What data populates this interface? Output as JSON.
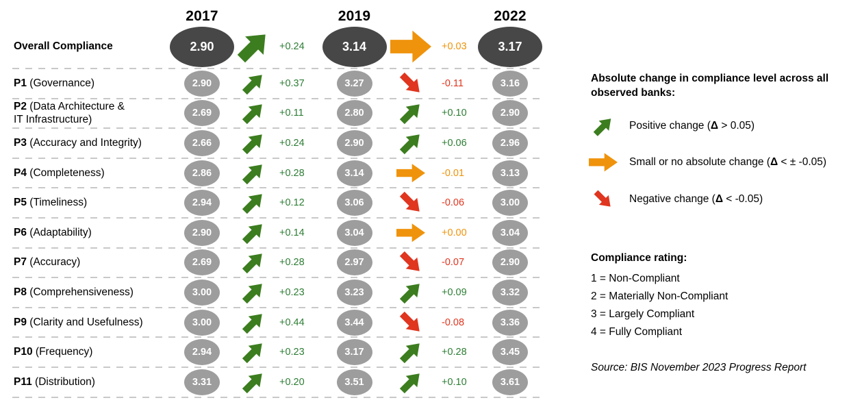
{
  "chart_data": {
    "type": "table",
    "title": "Compliance level by principle, 2017 vs 2019 vs 2022",
    "years": [
      "2017",
      "2019",
      "2022"
    ],
    "overall": {
      "label": "Overall Compliance",
      "v2017": "2.90",
      "d1": "+0.24",
      "t1": "up",
      "v2019": "3.14",
      "d2": "+0.03",
      "t2": "flat",
      "v2022": "3.17"
    },
    "rows": [
      {
        "prefix": "P1",
        "name": "(Governance)",
        "name2": "",
        "v1": "2.90",
        "d1": "+0.37",
        "t1": "up",
        "v2": "3.27",
        "d2": "-0.11",
        "t2": "down",
        "v3": "3.16"
      },
      {
        "prefix": "P2",
        "name": "(Data Architecture &",
        "name2": "IT Infrastructure)",
        "v1": "2.69",
        "d1": "+0.11",
        "t1": "up",
        "v2": "2.80",
        "d2": "+0.10",
        "t2": "up",
        "v3": "2.90"
      },
      {
        "prefix": "P3",
        "name": "(Accuracy and Integrity)",
        "name2": "",
        "v1": "2.66",
        "d1": "+0.24",
        "t1": "up",
        "v2": "2.90",
        "d2": "+0.06",
        "t2": "up",
        "v3": "2.96"
      },
      {
        "prefix": "P4",
        "name": "(Completeness)",
        "name2": "",
        "v1": "2.86",
        "d1": "+0.28",
        "t1": "up",
        "v2": "3.14",
        "d2": "-0.01",
        "t2": "flat",
        "v3": "3.13"
      },
      {
        "prefix": "P5",
        "name": "(Timeliness)",
        "name2": "",
        "v1": "2.94",
        "d1": "+0.12",
        "t1": "up",
        "v2": "3.06",
        "d2": "-0.06",
        "t2": "down",
        "v3": "3.00"
      },
      {
        "prefix": "P6",
        "name": "(Adaptability)",
        "name2": "",
        "v1": "2.90",
        "d1": "+0.14",
        "t1": "up",
        "v2": "3.04",
        "d2": "+0.00",
        "t2": "flat",
        "v3": "3.04"
      },
      {
        "prefix": "P7",
        "name": "(Accuracy)",
        "name2": "",
        "v1": "2.69",
        "d1": "+0.28",
        "t1": "up",
        "v2": "2.97",
        "d2": "-0.07",
        "t2": "down",
        "v3": "2.90"
      },
      {
        "prefix": "P8",
        "name": "(Comprehensiveness)",
        "name2": "",
        "v1": "3.00",
        "d1": "+0.23",
        "t1": "up",
        "v2": "3.23",
        "d2": "+0.09",
        "t2": "up",
        "v3": "3.32"
      },
      {
        "prefix": "P9",
        "name": "(Clarity and Usefulness)",
        "name2": "",
        "v1": "3.00",
        "d1": "+0.44",
        "t1": "up",
        "v2": "3.44",
        "d2": "-0.08",
        "t2": "down",
        "v3": "3.36"
      },
      {
        "prefix": "P10",
        "name": "(Frequency)",
        "name2": "",
        "v1": "2.94",
        "d1": "+0.23",
        "t1": "up",
        "v2": "3.17",
        "d2": "+0.28",
        "t2": "up",
        "v3": "3.45"
      },
      {
        "prefix": "P11",
        "name": "(Distribution)",
        "name2": "",
        "v1": "3.31",
        "d1": "+0.20",
        "t1": "up",
        "v2": "3.51",
        "d2": "+0.10",
        "t2": "up",
        "v3": "3.61"
      }
    ],
    "colors": {
      "positive": "#3c7d1f",
      "neutral": "#ef930c",
      "negative": "#e0351f",
      "overall_ellipse": "#474747",
      "principle_ellipse": "#9d9d9d"
    }
  },
  "legend": {
    "heading": "Absolute change in compliance level across all observed banks:",
    "items": [
      {
        "icon": "up-arrow",
        "pre": "Positive change (",
        "sym": "Δ",
        "post": " > 0.05)"
      },
      {
        "icon": "flat-arrow",
        "pre": "Small or no absolute change (",
        "sym": "Δ",
        "post": " < ± -0.05)"
      },
      {
        "icon": "down-arrow",
        "pre": "Negative change (",
        "sym": "Δ",
        "post": " < -0.05)"
      }
    ]
  },
  "rating": {
    "heading": "Compliance rating:",
    "items": [
      "1 = Non-Compliant",
      "2 = Materially Non-Compliant",
      "3 = Largely Compliant",
      "4 = Fully Compliant"
    ]
  },
  "source": {
    "text": "Source: BIS November 2023 Progress Report"
  }
}
